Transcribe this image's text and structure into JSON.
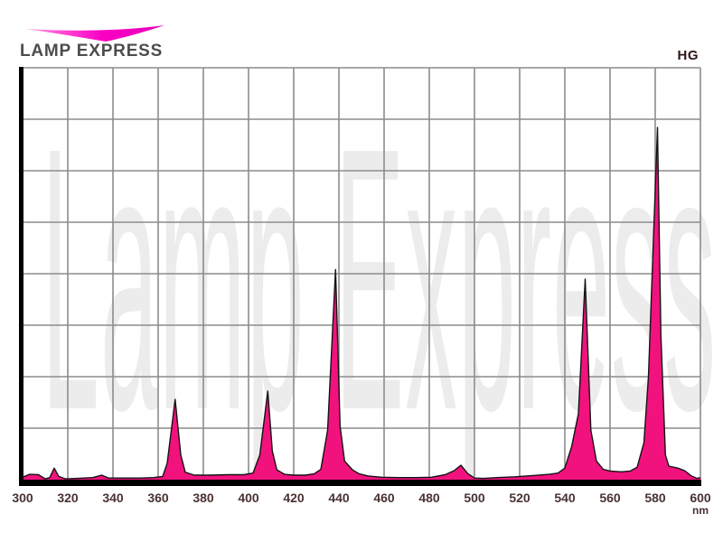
{
  "logo": {
    "brand": "LAMP EXPRESS"
  },
  "header": {
    "corner_label": "HG"
  },
  "watermark": {
    "text": "Lamp Express"
  },
  "colors": {
    "spectrum_fill": "#f2127e",
    "spectrum_outline": "#141414",
    "grid": "#8c8c8c",
    "axis": "#000000",
    "tick_label": "#4a3232",
    "corner_label": "#2f1616",
    "logo_text": "#4d4d4d",
    "watermark": "#ececec",
    "swoosh_gradient": [
      "#ffa2e8",
      "#ff4fd4",
      "#fb00c6",
      "#e800b8"
    ]
  },
  "chart_data": {
    "type": "area",
    "title": "",
    "xlabel": "nm",
    "ylabel": "",
    "x_tick_unit": "nm",
    "xlim": [
      300,
      600
    ],
    "ylim": [
      0,
      1
    ],
    "grid": true,
    "grid_rows": 8,
    "legend": "none",
    "x_ticks": [
      300,
      320,
      340,
      360,
      380,
      400,
      420,
      440,
      460,
      480,
      500,
      520,
      540,
      560,
      580,
      600
    ],
    "peak_wavelengths_nm": [
      303,
      314,
      335,
      367,
      409,
      438,
      494,
      549,
      581
    ],
    "series": [
      {
        "name": "HG",
        "points": [
          [
            300,
            0.006
          ],
          [
            303,
            0.013
          ],
          [
            307,
            0.012
          ],
          [
            310,
            0.002
          ],
          [
            312,
            0.005
          ],
          [
            314,
            0.028
          ],
          [
            316,
            0.008
          ],
          [
            319,
            0.002
          ],
          [
            324,
            0.003
          ],
          [
            331,
            0.005
          ],
          [
            335,
            0.011
          ],
          [
            338,
            0.004
          ],
          [
            344,
            0.004
          ],
          [
            352,
            0.004
          ],
          [
            358,
            0.005
          ],
          [
            362,
            0.008
          ],
          [
            364,
            0.04
          ],
          [
            367.5,
            0.195
          ],
          [
            370,
            0.06
          ],
          [
            372,
            0.018
          ],
          [
            376,
            0.011
          ],
          [
            383,
            0.011
          ],
          [
            391,
            0.012
          ],
          [
            398,
            0.012
          ],
          [
            402,
            0.016
          ],
          [
            405,
            0.06
          ],
          [
            408.5,
            0.215
          ],
          [
            410.5,
            0.07
          ],
          [
            412.5,
            0.024
          ],
          [
            416,
            0.013
          ],
          [
            420,
            0.011
          ],
          [
            425,
            0.011
          ],
          [
            429,
            0.014
          ],
          [
            432,
            0.025
          ],
          [
            435,
            0.12
          ],
          [
            438.5,
            0.51
          ],
          [
            440.5,
            0.13
          ],
          [
            442.5,
            0.045
          ],
          [
            446,
            0.024
          ],
          [
            449,
            0.014
          ],
          [
            453,
            0.009
          ],
          [
            459,
            0.006
          ],
          [
            466,
            0.005
          ],
          [
            474,
            0.005
          ],
          [
            481,
            0.006
          ],
          [
            487,
            0.012
          ],
          [
            491,
            0.022
          ],
          [
            494,
            0.035
          ],
          [
            497,
            0.015
          ],
          [
            500,
            0.004
          ],
          [
            504,
            0.003
          ],
          [
            510,
            0.005
          ],
          [
            518,
            0.007
          ],
          [
            526,
            0.01
          ],
          [
            533,
            0.013
          ],
          [
            537,
            0.016
          ],
          [
            540,
            0.028
          ],
          [
            543,
            0.08
          ],
          [
            546,
            0.16
          ],
          [
            549,
            0.487
          ],
          [
            551.5,
            0.12
          ],
          [
            554,
            0.045
          ],
          [
            557,
            0.025
          ],
          [
            560,
            0.021
          ],
          [
            565,
            0.019
          ],
          [
            569,
            0.021
          ],
          [
            572,
            0.03
          ],
          [
            575,
            0.09
          ],
          [
            577,
            0.25
          ],
          [
            581,
            0.855
          ],
          [
            582.5,
            0.35
          ],
          [
            584.5,
            0.06
          ],
          [
            586,
            0.033
          ],
          [
            590,
            0.028
          ],
          [
            593,
            0.022
          ],
          [
            596,
            0.009
          ],
          [
            598.5,
            0.003
          ],
          [
            600,
            0.005
          ]
        ]
      }
    ]
  }
}
